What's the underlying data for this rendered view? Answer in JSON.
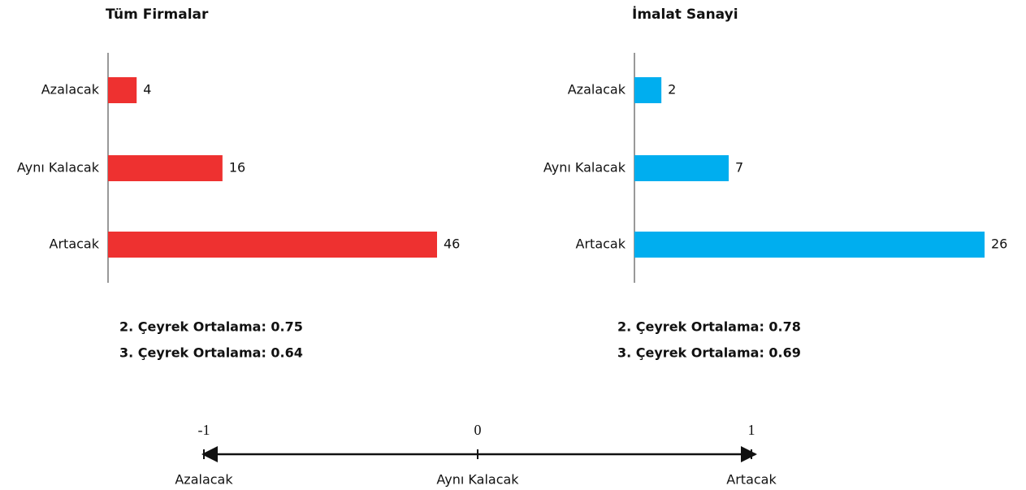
{
  "chart_data": [
    {
      "type": "barh",
      "title": "Tüm Firmalar",
      "categories": [
        "Azalacak",
        "Aynı Kalacak",
        "Artacak"
      ],
      "values": [
        4,
        16,
        46
      ],
      "color": "#ee3130",
      "annotations": [
        "2. Çeyrek Ortalama: 0.75",
        "3. Çeyrek Ortalama: 0.64"
      ]
    },
    {
      "type": "barh",
      "title": "İmalat Sanayi",
      "categories": [
        "Azalacak",
        "Aynı Kalacak",
        "Artacak"
      ],
      "values": [
        2,
        7,
        26
      ],
      "color": "#00aeef",
      "annotations": [
        "2. Çeyrek Ortalama: 0.78",
        "3. Çeyrek Ortalama: 0.69"
      ]
    }
  ],
  "scale": {
    "points": [
      {
        "value": -1,
        "label": "Azalacak"
      },
      {
        "value": 0,
        "label": "Aynı Kalacak"
      },
      {
        "value": 1,
        "label": "Artacak"
      }
    ]
  }
}
